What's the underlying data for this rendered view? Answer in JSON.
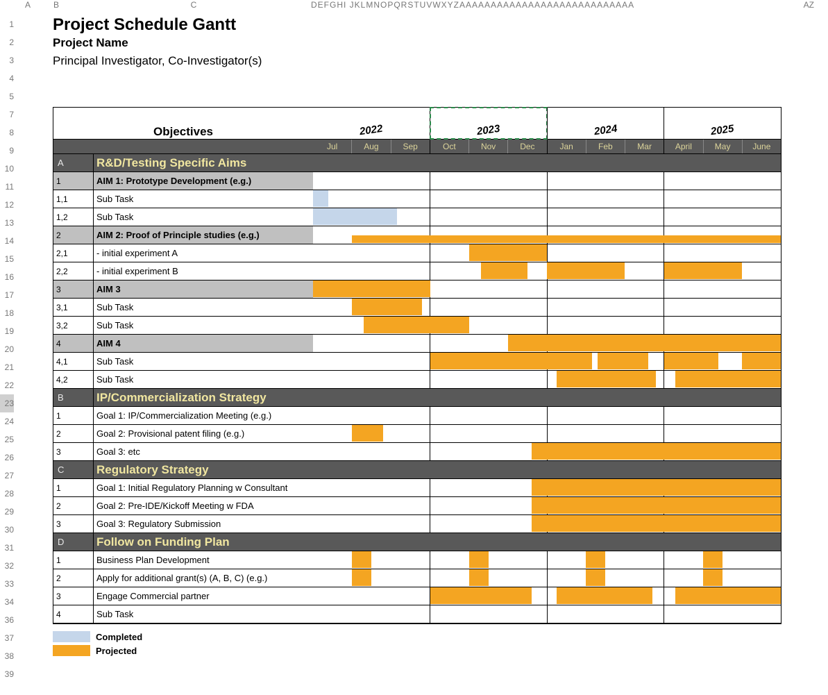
{
  "colHeaders": {
    "A": "A",
    "B": "B",
    "C": "C",
    "rest": "DEFGHI JKLMNOPQRSTUVWXYZAAAAAAAAAAAAAAAAAAAAAAAAAAAA",
    "AZ": "AZ"
  },
  "rowNumbers": [
    "1",
    "2",
    "3",
    "4",
    "5",
    "7",
    "8",
    "9",
    "10",
    "11",
    "12",
    "13",
    "14",
    "15",
    "16",
    "17",
    "18",
    "19",
    "20",
    "21",
    "22",
    "23",
    "24",
    "25",
    "26",
    "27",
    "28",
    "29",
    "30",
    "31",
    "32",
    "33",
    "34",
    "36",
    "37",
    "38",
    "39"
  ],
  "shortRows": [
    30,
    31
  ],
  "highlightedRow": 21,
  "title": "Project Schedule Gantt",
  "subtitle": "Project Name",
  "subtext": "Principal Investigator, Co-Investigator(s)",
  "objectivesHeader": "Objectives",
  "years": [
    "2022",
    "2023",
    "2024",
    "2025"
  ],
  "dashedYearIndex": 1,
  "months": [
    "Jul",
    "Aug",
    "Sep",
    "Oct",
    "Nov",
    "Dec",
    "Jan",
    "Feb",
    "Mar",
    "April",
    "May",
    "June"
  ],
  "colors": {
    "completed": "#c5d6ea",
    "projected": "#f4a522",
    "sectionBg": "#595959",
    "sectionText": "#f0e6a0",
    "aimBg": "#c0c0c0"
  },
  "nMonths": 12,
  "rows": [
    {
      "type": "section",
      "id": "A",
      "label": "R&D/Testing Specific Aims"
    },
    {
      "type": "aim",
      "id": "1",
      "label": "AIM 1: Prototype Development (e.g.)",
      "bars": []
    },
    {
      "type": "task",
      "id": "1,1",
      "label": "Sub Task",
      "bars": [
        {
          "start": 0,
          "len": 0.4,
          "color": "blue"
        }
      ]
    },
    {
      "type": "task",
      "id": "1,2",
      "label": "Sub Task",
      "bars": [
        {
          "start": 0,
          "len": 2.15,
          "color": "blue"
        }
      ]
    },
    {
      "type": "aim",
      "id": "2",
      "label": "AIM 2: Proof of Principle studies (e.g.)",
      "bars": [
        {
          "start": 1,
          "len": 11,
          "half": true
        }
      ]
    },
    {
      "type": "task",
      "id": "2,1",
      "label": " - initial experiment A",
      "bars": [
        {
          "start": 4,
          "len": 2
        }
      ]
    },
    {
      "type": "task",
      "id": "2,2",
      "label": " - initial experiment B",
      "bars": [
        {
          "start": 4.3,
          "len": 1.2
        },
        {
          "start": 6,
          "len": 2
        },
        {
          "start": 9,
          "len": 2
        }
      ]
    },
    {
      "type": "aim",
      "id": "3",
      "label": "AIM 3",
      "bars": [
        {
          "start": 0,
          "len": 3
        }
      ]
    },
    {
      "type": "task",
      "id": "3,1",
      "label": "Sub Task",
      "bars": [
        {
          "start": 1,
          "len": 1.8
        }
      ]
    },
    {
      "type": "task",
      "id": "3,2",
      "label": "Sub Task",
      "bars": [
        {
          "start": 1.3,
          "len": 2.7
        }
      ]
    },
    {
      "type": "aim",
      "id": "4",
      "label": "AIM 4",
      "bars": [
        {
          "start": 5,
          "len": 7
        }
      ]
    },
    {
      "type": "task",
      "id": "4,1",
      "label": "Sub Task",
      "bars": [
        {
          "start": 3,
          "len": 4.15
        },
        {
          "start": 7.3,
          "len": 1.3
        },
        {
          "start": 9,
          "len": 1.4
        },
        {
          "start": 11,
          "len": 1
        }
      ]
    },
    {
      "type": "task",
      "id": "4,2",
      "label": "Sub Task",
      "bars": [
        {
          "start": 6.25,
          "len": 2.55
        },
        {
          "start": 9.3,
          "len": 2.7
        }
      ]
    },
    {
      "type": "section",
      "id": "B",
      "label": "IP/Commercialization Strategy"
    },
    {
      "type": "task",
      "id": "1",
      "label": "Goal 1: IP/Commercialization Meeting (e.g.)",
      "bars": []
    },
    {
      "type": "task",
      "id": "2",
      "label": "Goal 2: Provisional patent filing (e.g.)",
      "bars": [
        {
          "start": 1,
          "len": 0.8
        }
      ]
    },
    {
      "type": "task",
      "id": "3",
      "label": "Goal 3: etc",
      "bars": [
        {
          "start": 5.6,
          "len": 6.4
        }
      ]
    },
    {
      "type": "section",
      "id": "C",
      "label": "Regulatory Strategy"
    },
    {
      "type": "task",
      "id": "1",
      "label": "Goal 1: Initial Regulatory Planning w Consultant",
      "bars": [
        {
          "start": 5.6,
          "len": 6.4
        }
      ]
    },
    {
      "type": "task",
      "id": "2",
      "label": "Goal 2: Pre-IDE/Kickoff Meeting w FDA",
      "bars": [
        {
          "start": 5.6,
          "len": 6.4
        }
      ]
    },
    {
      "type": "task",
      "id": "3",
      "label": "Goal 3: Regulatory Submission",
      "bars": [
        {
          "start": 5.6,
          "len": 6.4
        }
      ]
    },
    {
      "type": "section",
      "id": "D",
      "label": "Follow on Funding Plan"
    },
    {
      "type": "task",
      "id": "1",
      "label": "Business Plan Development",
      "bars": [
        {
          "start": 1,
          "len": 0.5
        },
        {
          "start": 4,
          "len": 0.5
        },
        {
          "start": 7,
          "len": 0.5
        },
        {
          "start": 10,
          "len": 0.5
        }
      ]
    },
    {
      "type": "task",
      "id": "2",
      "label": "Apply for additional grant(s) (A, B, C) (e.g.)",
      "bars": [
        {
          "start": 1,
          "len": 0.5
        },
        {
          "start": 4,
          "len": 0.5
        },
        {
          "start": 7,
          "len": 0.5
        },
        {
          "start": 10,
          "len": 0.5
        }
      ]
    },
    {
      "type": "task",
      "id": "3",
      "label": "Engage Commercial partner",
      "bars": [
        {
          "start": 3,
          "len": 2.6
        },
        {
          "start": 6.25,
          "len": 2.45
        },
        {
          "start": 9.3,
          "len": 2.7
        }
      ]
    },
    {
      "type": "task",
      "id": "4",
      "label": "Sub Task",
      "bars": []
    }
  ],
  "legend": {
    "completed": "Completed",
    "projected": "Projected"
  }
}
